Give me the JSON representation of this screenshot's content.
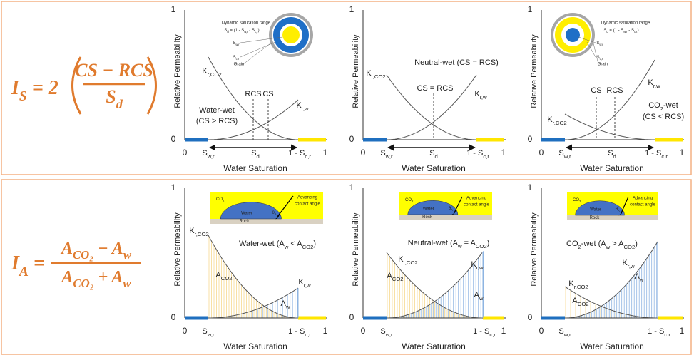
{
  "top_formula": {
    "lhs": [
      "I",
      "S",
      " = 2"
    ],
    "numerator": "CS − RCS",
    "denominator": [
      "S",
      "d"
    ]
  },
  "bottom_formula": {
    "lhs": [
      "I",
      "A",
      " ="
    ],
    "numerator": [
      "A",
      "CO₂",
      " − A",
      "w"
    ],
    "denominator": [
      "A",
      "CO₂",
      " + A",
      "w"
    ]
  },
  "top_panels": [
    {
      "axis": {
        "y_max": "1",
        "y_min": "0",
        "x_min": "0",
        "x_max": "1",
        "swr": [
          "S",
          "w,r"
        ],
        "sd": [
          "S",
          "d"
        ],
        "scr": [
          "1 - S",
          "c,r"
        ],
        "x_title": "Water Saturation",
        "y_title": "Relative Permeability"
      },
      "texts": [
        [
          "K",
          "r,CO2"
        ],
        [
          "K",
          "r,w"
        ],
        "RCS",
        "CS",
        "Water-wet",
        "(CS > RCS)"
      ],
      "inset": [
        "Dynamic saturation range",
        [
          "S",
          "d",
          " = (1 - S",
          "w,r",
          " - S",
          "c,r",
          ")"
        ],
        [
          "S",
          "w,r"
        ],
        [
          "S",
          "c,r"
        ],
        "Grain"
      ]
    },
    {
      "axis": {
        "y_max": "1",
        "y_min": "0",
        "x_min": "0",
        "x_max": "1",
        "swr": [
          "S",
          "w,r"
        ],
        "sd": [
          "S",
          "d"
        ],
        "scr": [
          "1 - S",
          "c,r"
        ],
        "x_title": "Water Saturation",
        "y_title": "Relative Permeability"
      },
      "texts": [
        [
          "K",
          "r,CO2"
        ],
        [
          "K",
          "r,w"
        ],
        "Neutral-wet (CS = RCS)",
        "CS = RCS"
      ]
    },
    {
      "axis": {
        "y_max": "1",
        "y_min": "0",
        "x_min": "0",
        "x_max": "1",
        "swr": [
          "S",
          "w,r"
        ],
        "sd": [
          "S",
          "d"
        ],
        "scr": [
          "1 - S",
          "c,r"
        ],
        "x_title": "Water Saturation",
        "y_title": "Relative Permeability"
      },
      "texts": [
        [
          "K",
          "r,CO2"
        ],
        [
          "K",
          "r,w"
        ],
        "CS",
        "RCS",
        [
          "CO",
          "2",
          "-wet"
        ],
        "(CS < RCS)"
      ],
      "inset": [
        "Dynamic saturation range",
        [
          "S",
          "d",
          " = (1 - S",
          "w,r",
          " - S",
          "c,r",
          ")"
        ],
        [
          "S",
          "w,r"
        ],
        [
          "S",
          "c,r"
        ],
        "Grain"
      ]
    }
  ],
  "bottom_panels": [
    {
      "axis": {
        "y_max": "1",
        "y_min": "0",
        "x_min": "0",
        "x_max": "1",
        "swr": [
          "S",
          "w,r"
        ],
        "scr": [
          "1 - S",
          "c,r"
        ],
        "x_title": "Water Saturation",
        "y_title": "Relative Permeability"
      },
      "texts": [
        [
          "K",
          "r,CO2"
        ],
        [
          "K",
          "r,w"
        ],
        [
          "Water-wet (A",
          "w",
          " < A",
          "CO2",
          ")"
        ],
        [
          "A",
          "CO2"
        ],
        [
          "A",
          "w"
        ]
      ],
      "inset": [
        [
          "CO",
          "2"
        ],
        "Water",
        "Rock",
        "Advancing",
        "contact angle",
        [
          "θ",
          "A"
        ]
      ]
    },
    {
      "axis": {
        "y_max": "1",
        "y_min": "0",
        "x_min": "0",
        "x_max": "1",
        "swr": [
          "S",
          "w,r"
        ],
        "scr": [
          "1 - S",
          "c,r"
        ],
        "x_title": "Water Saturation",
        "y_title": "Relative Permeability"
      },
      "texts": [
        [
          "K",
          "r,CO2"
        ],
        [
          "K",
          "r,w"
        ],
        [
          "Neutral-wet (A",
          "w",
          " = A",
          "CO2",
          ")"
        ],
        [
          "A",
          "CO2"
        ],
        [
          "A",
          "w"
        ]
      ],
      "inset": [
        [
          "CO",
          "2"
        ],
        "Water",
        "Rock",
        "Advancing",
        "contact angle",
        [
          "θ",
          "A"
        ]
      ]
    },
    {
      "axis": {
        "y_max": "1",
        "y_min": "0",
        "x_min": "0",
        "x_max": "1",
        "swr": [
          "S",
          "w,r"
        ],
        "scr": [
          "1 - S",
          "c,r"
        ],
        "x_title": "Water Saturation",
        "y_title": "Relative Permeability"
      },
      "texts": [
        [
          "K",
          "r,CO2"
        ],
        [
          "K",
          "r,w"
        ],
        [
          "CO",
          "2",
          "-wet (A",
          "w",
          " > A",
          "CO2",
          ")"
        ],
        [
          "A",
          "CO2"
        ],
        [
          "A",
          "w"
        ]
      ],
      "inset": [
        [
          "CO",
          "2"
        ],
        "Water",
        "Rock",
        "Advancing",
        "contact angle",
        [
          "θ",
          "A"
        ]
      ]
    }
  ]
}
